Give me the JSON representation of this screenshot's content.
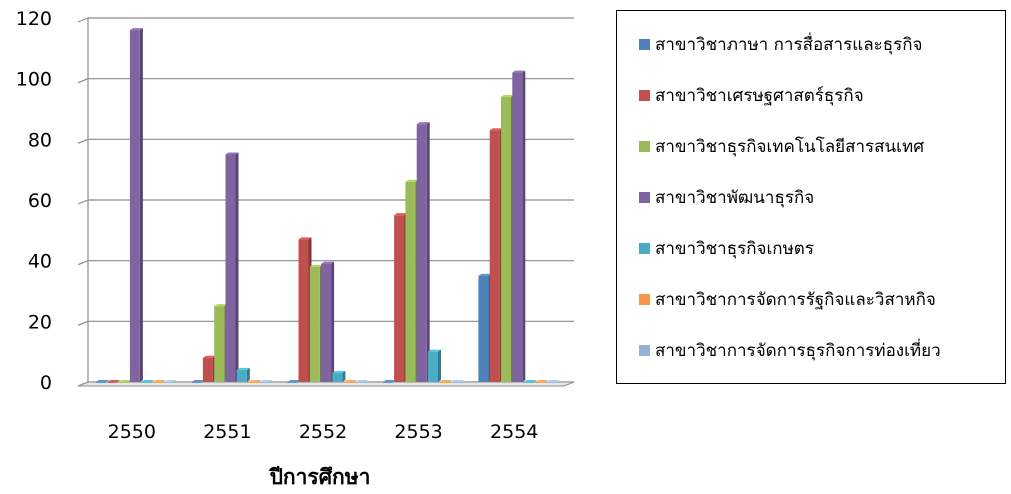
{
  "chart_data": {
    "type": "bar",
    "title": "",
    "xlabel": "ปีการศึกษา",
    "ylabel": "",
    "ylim": [
      0,
      120
    ],
    "yticks": [
      0,
      20,
      40,
      60,
      80,
      100,
      120
    ],
    "grid": true,
    "three_d": true,
    "legend_position": "right",
    "categories": [
      "2550",
      "2551",
      "2552",
      "2553",
      "2554"
    ],
    "series": [
      {
        "name": "สาขาวิชาภาษา การสื่อสารและธุรกิจ",
        "color": "#4F81BD",
        "values": [
          0,
          0,
          0,
          0,
          35
        ]
      },
      {
        "name": "สาขาวิชาเศรษฐศาสตร์ธุรกิจ",
        "color": "#C0504D",
        "values": [
          0,
          8,
          47,
          55,
          83
        ]
      },
      {
        "name": "สาขาวิชาธุรกิจเทคโนโลยีสารสนเทศ",
        "color": "#9BBB59",
        "values": [
          0,
          25,
          38,
          66,
          94
        ]
      },
      {
        "name": "สาขาวิชาพัฒนาธุรกิจ",
        "color": "#8064A2",
        "values": [
          116,
          75,
          39,
          85,
          102
        ]
      },
      {
        "name": "สาขาวิชาธุรกิจเกษตร",
        "color": "#4BACC6",
        "values": [
          0,
          4,
          3,
          10,
          0
        ]
      },
      {
        "name": "สาขาวิชาการจัดการรัฐกิจและวิสาหกิจ",
        "color": "#F79646",
        "values": [
          0,
          0,
          0,
          0,
          0
        ]
      },
      {
        "name": "สาขาวิชาการจัดการธุรกิจการท่องเที่ยว",
        "color": "#95B3D7",
        "values": [
          0,
          0,
          0,
          0,
          0
        ]
      }
    ]
  }
}
